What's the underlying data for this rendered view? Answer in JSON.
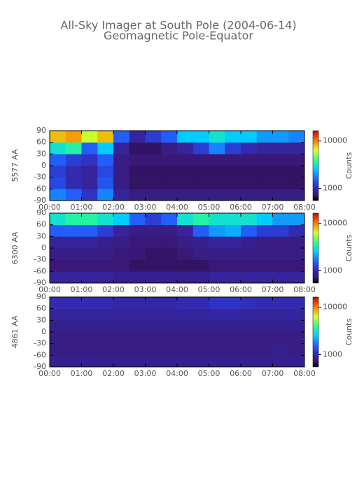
{
  "chart_data": [
    {
      "type": "heatmap",
      "title": "All-Sky Imager at South Pole (2004-06-14)",
      "subtitle": "Geomagnetic Pole-Equator",
      "ylabel": "5577 AA",
      "clabel": "Counts",
      "clim": [
        550,
        16500
      ],
      "cticks": [
        1000,
        10000
      ],
      "clog": true,
      "xlim": [
        0,
        8
      ],
      "xticks": [
        {
          "value": 0,
          "label": "00:00"
        },
        {
          "value": 1,
          "label": "01:00"
        },
        {
          "value": 2,
          "label": "02:00"
        },
        {
          "value": 3,
          "label": "03:00"
        },
        {
          "value": 4,
          "label": "04:00"
        },
        {
          "value": 5,
          "label": "05:00"
        },
        {
          "value": 6,
          "label": "06:00"
        },
        {
          "value": 7,
          "label": "07:00"
        },
        {
          "value": 8,
          "label": "08:00"
        }
      ],
      "ylim": [
        -90,
        90
      ],
      "yticks": [
        90,
        60,
        30,
        0,
        -30,
        -60,
        -90
      ],
      "x_edges": [
        0,
        0.5,
        1,
        1.5,
        2,
        2.5,
        3,
        3.5,
        4,
        4.5,
        5,
        5.5,
        6,
        6.5,
        7,
        7.5,
        8
      ],
      "y_edges": [
        -90,
        -60,
        -30,
        0,
        30,
        60,
        90
      ],
      "values": [
        [
          1800,
          1500,
          1100,
          1800,
          900,
          800,
          800,
          800,
          800,
          800,
          800,
          800,
          800,
          800,
          800,
          800
        ],
        [
          1300,
          1000,
          900,
          1400,
          800,
          700,
          700,
          700,
          700,
          700,
          700,
          700,
          700,
          700,
          700,
          700
        ],
        [
          1200,
          1000,
          900,
          1300,
          800,
          700,
          700,
          700,
          700,
          700,
          700,
          700,
          700,
          700,
          700,
          700
        ],
        [
          1500,
          1200,
          1100,
          1500,
          800,
          750,
          750,
          750,
          750,
          750,
          750,
          750,
          750,
          750,
          750,
          750
        ],
        [
          3000,
          3500,
          1500,
          2500,
          900,
          700,
          700,
          800,
          900,
          1200,
          1800,
          1200,
          1000,
          900,
          900,
          900
        ],
        [
          8000,
          9000,
          6000,
          8000,
          1500,
          900,
          1200,
          1500,
          2500,
          2500,
          3000,
          2500,
          2500,
          2000,
          2000,
          1800
        ]
      ]
    },
    {
      "type": "heatmap",
      "ylabel": "6300 AA",
      "clabel": "Counts",
      "clim": [
        550,
        16500
      ],
      "cticks": [
        1000,
        10000
      ],
      "clog": true,
      "xlim": [
        0,
        8
      ],
      "xticks": [
        {
          "value": 0,
          "label": "00:00"
        },
        {
          "value": 1,
          "label": "01:00"
        },
        {
          "value": 2,
          "label": "02:00"
        },
        {
          "value": 3,
          "label": "03:00"
        },
        {
          "value": 4,
          "label": "04:00"
        },
        {
          "value": 5,
          "label": "05:00"
        },
        {
          "value": 6,
          "label": "06:00"
        },
        {
          "value": 7,
          "label": "07:00"
        },
        {
          "value": 8,
          "label": "08:00"
        }
      ],
      "ylim": [
        -90,
        90
      ],
      "yticks": [
        90,
        60,
        30,
        0,
        -30,
        -60,
        -90
      ],
      "x_edges": [
        0,
        0.5,
        1,
        1.5,
        2,
        2.5,
        3,
        3.5,
        4,
        4.5,
        5,
        5.5,
        6,
        6.5,
        7,
        7.5,
        8
      ],
      "y_edges": [
        -90,
        -60,
        -30,
        0,
        30,
        60,
        90
      ],
      "values": [
        [
          900,
          900,
          900,
          900,
          850,
          850,
          850,
          850,
          850,
          850,
          900,
          900,
          900,
          900,
          900,
          900
        ],
        [
          750,
          750,
          750,
          750,
          750,
          700,
          700,
          700,
          700,
          700,
          750,
          750,
          750,
          750,
          750,
          750
        ],
        [
          800,
          800,
          800,
          800,
          750,
          750,
          700,
          700,
          750,
          800,
          800,
          800,
          800,
          800,
          800,
          800
        ],
        [
          900,
          900,
          900,
          850,
          800,
          750,
          750,
          750,
          800,
          850,
          900,
          900,
          850,
          800,
          800,
          800
        ],
        [
          1500,
          1500,
          1500,
          1200,
          900,
          800,
          800,
          800,
          900,
          1500,
          2000,
          2200,
          1500,
          1200,
          1200,
          1000
        ],
        [
          3000,
          3500,
          3500,
          3000,
          2500,
          1500,
          1200,
          1500,
          3000,
          3500,
          3000,
          3000,
          3000,
          2500,
          2000,
          2000
        ]
      ]
    },
    {
      "type": "heatmap",
      "ylabel": "4861 AA",
      "clabel": "Counts",
      "clim": [
        550,
        16500
      ],
      "cticks": [
        1000,
        10000
      ],
      "clog": true,
      "xlim": [
        0,
        8
      ],
      "xticks": [
        {
          "value": 0,
          "label": "00:00"
        },
        {
          "value": 1,
          "label": "01:00"
        },
        {
          "value": 2,
          "label": "02:00"
        },
        {
          "value": 3,
          "label": "03:00"
        },
        {
          "value": 4,
          "label": "04:00"
        },
        {
          "value": 5,
          "label": "05:00"
        },
        {
          "value": 6,
          "label": "06:00"
        },
        {
          "value": 7,
          "label": "07:00"
        },
        {
          "value": 8,
          "label": "08:00"
        }
      ],
      "ylim": [
        -90,
        90
      ],
      "yticks": [
        90,
        60,
        30,
        0,
        -30,
        -60,
        -90
      ],
      "x_edges": [
        0,
        0.5,
        1,
        1.5,
        2,
        2.5,
        3,
        3.5,
        4,
        4.5,
        5,
        5.5,
        6,
        6.5,
        7,
        7.5,
        8
      ],
      "y_edges": [
        -90,
        -60,
        -30,
        0,
        30,
        60,
        90
      ],
      "values": [
        [
          850,
          850,
          850,
          850,
          850,
          850,
          850,
          850,
          850,
          850,
          850,
          850,
          850,
          850,
          850,
          850
        ],
        [
          800,
          800,
          800,
          800,
          800,
          800,
          800,
          800,
          800,
          800,
          800,
          800,
          800,
          800,
          850,
          800
        ],
        [
          800,
          800,
          800,
          800,
          800,
          800,
          800,
          800,
          800,
          800,
          800,
          800,
          800,
          800,
          800,
          800
        ],
        [
          850,
          850,
          850,
          850,
          850,
          850,
          850,
          850,
          850,
          850,
          850,
          850,
          850,
          850,
          850,
          850
        ],
        [
          900,
          900,
          900,
          900,
          900,
          900,
          900,
          900,
          900,
          900,
          950,
          950,
          900,
          900,
          900,
          900
        ],
        [
          1000,
          1000,
          1000,
          1000,
          950,
          950,
          950,
          950,
          1000,
          1000,
          1100,
          1100,
          1050,
          1000,
          1000,
          1000
        ]
      ]
    }
  ]
}
